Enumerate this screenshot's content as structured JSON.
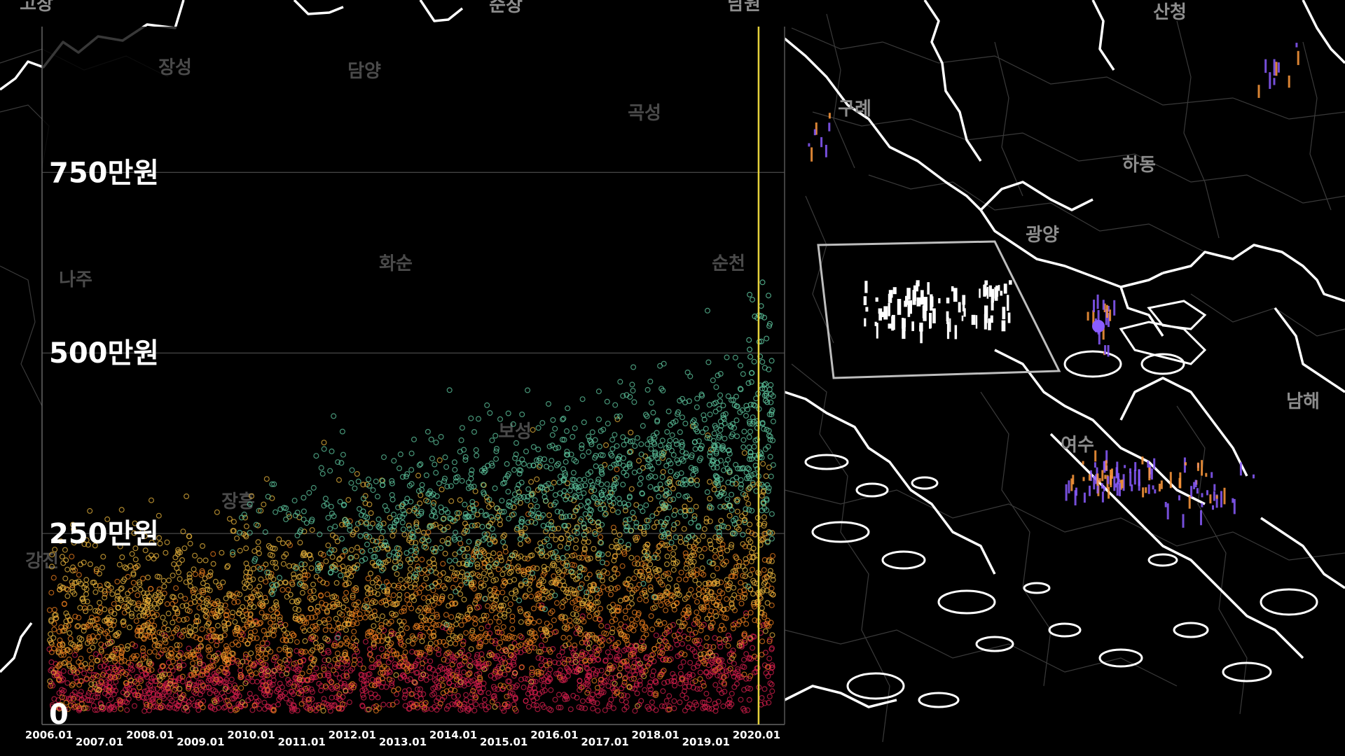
{
  "map": {
    "regions_outside": [
      {
        "name": "고창",
        "dim": false
      },
      {
        "name": "순창",
        "dim": false
      },
      {
        "name": "남원",
        "dim": false
      },
      {
        "name": "산청",
        "dim": false
      },
      {
        "name": "구례",
        "dim": false
      },
      {
        "name": "하동",
        "dim": false
      },
      {
        "name": "광양",
        "dim": false
      },
      {
        "name": "여수",
        "dim": false
      },
      {
        "name": "남해",
        "dim": false
      }
    ],
    "regions_behind_chart": [
      {
        "name": "장성",
        "dim": true
      },
      {
        "name": "담양",
        "dim": true
      },
      {
        "name": "곡성",
        "dim": true
      },
      {
        "name": "나주",
        "dim": true
      },
      {
        "name": "화순",
        "dim": true
      },
      {
        "name": "순천",
        "dim": true
      },
      {
        "name": "보성",
        "dim": true
      },
      {
        "name": "장흥",
        "dim": true
      },
      {
        "name": "강진",
        "dim": true
      }
    ],
    "highlight_color": "#ffffff",
    "marker_color": "#8a5cff"
  },
  "chart_data": {
    "type": "scatter",
    "title": "",
    "xlabel": "",
    "ylabel": "",
    "x_ticks": [
      "2006.01",
      "2007.01",
      "2008.01",
      "2009.01",
      "2010.01",
      "2011.01",
      "2012.01",
      "2013.01",
      "2014.01",
      "2015.01",
      "2016.01",
      "2017.01",
      "2018.01",
      "2019.01",
      "2020.01"
    ],
    "y_ticks": [
      {
        "value": 0,
        "label": "0"
      },
      {
        "value": 250,
        "label": "250만원"
      },
      {
        "value": 500,
        "label": "500만원"
      },
      {
        "value": 750,
        "label": "750만원"
      }
    ],
    "xlim": [
      "2006.01",
      "2020.06"
    ],
    "ylim": [
      0,
      950
    ],
    "grid": "horizontal",
    "current_marker": "2020.01",
    "current_marker_color": "#e6d23c",
    "series": [
      {
        "color": "#d21e4b",
        "trend_start": 35,
        "trend_end": 60,
        "spread_start": 25,
        "spread_end": 35
      },
      {
        "color": "#e87c1e",
        "trend_start": 90,
        "trend_end": 150,
        "spread_start": 45,
        "spread_end": 55
      },
      {
        "color": "#e8b43c",
        "trend_start": 150,
        "trend_end": 230,
        "spread_start": 50,
        "spread_end": 70
      },
      {
        "color": "#5fc8a0",
        "trend_start": 190,
        "trend_end": 370,
        "spread_start": 40,
        "spread_end": 65
      }
    ]
  }
}
